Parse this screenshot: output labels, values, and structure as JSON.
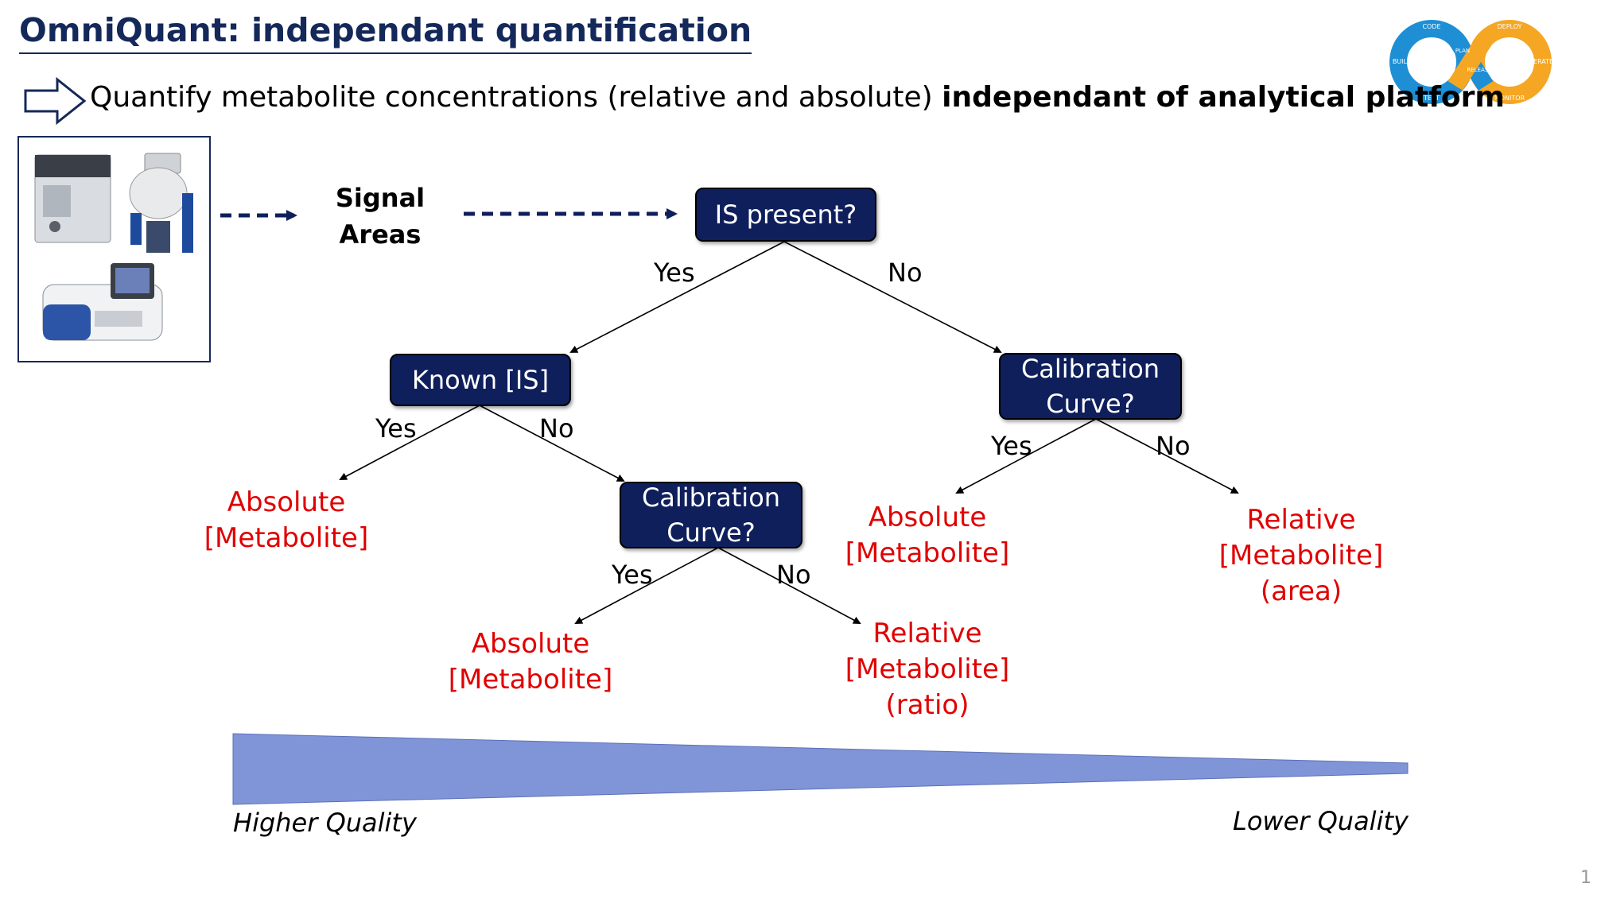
{
  "title": "OmniQuant: independant quantification",
  "subtitle": {
    "regular": "Quantify metabolite concentrations (relative and absolute) ",
    "bold": "independant of analytical platform"
  },
  "logo": {
    "icon": "devops-infinity-loop",
    "colors": {
      "left": "#1e8fd5",
      "right": "#f5a623"
    },
    "labels": {
      "code": "CODE",
      "build": "BUILD",
      "test": "TEST",
      "plan": "PLAN",
      "release": "RELEASE",
      "deploy": "DEPLOY",
      "operate": "OPERATE",
      "monitor": "MONITOR"
    }
  },
  "input_label": "Signal\nAreas",
  "nodes": {
    "is_present": "IS present?",
    "known_is": "Known [IS]",
    "calib_right": "Calibration\nCurve?",
    "calib_mid": "Calibration\nCurve?"
  },
  "edges": {
    "root_yes": "Yes",
    "root_no": "No",
    "known_yes": "Yes",
    "known_no": "No",
    "calib_right_yes": "Yes",
    "calib_right_no": "No",
    "calib_mid_yes": "Yes",
    "calib_mid_no": "No"
  },
  "results": {
    "known_abs": "Absolute\n[Metabolite]",
    "calib_mid_abs": "Absolute\n[Metabolite]",
    "calib_mid_rel": "Relative\n[Metabolite]\n(ratio)",
    "calib_right_abs": "Absolute\n[Metabolite]",
    "calib_right_rel": "Relative\n[Metabolite]\n(area)"
  },
  "quality": {
    "high": "Higher Quality",
    "low": "Lower Quality"
  },
  "page_number": "1",
  "colors": {
    "node_fill": "#0f1f5c",
    "result_text": "#e00000",
    "title": "#14285a",
    "wedge": "#7f93d4"
  }
}
